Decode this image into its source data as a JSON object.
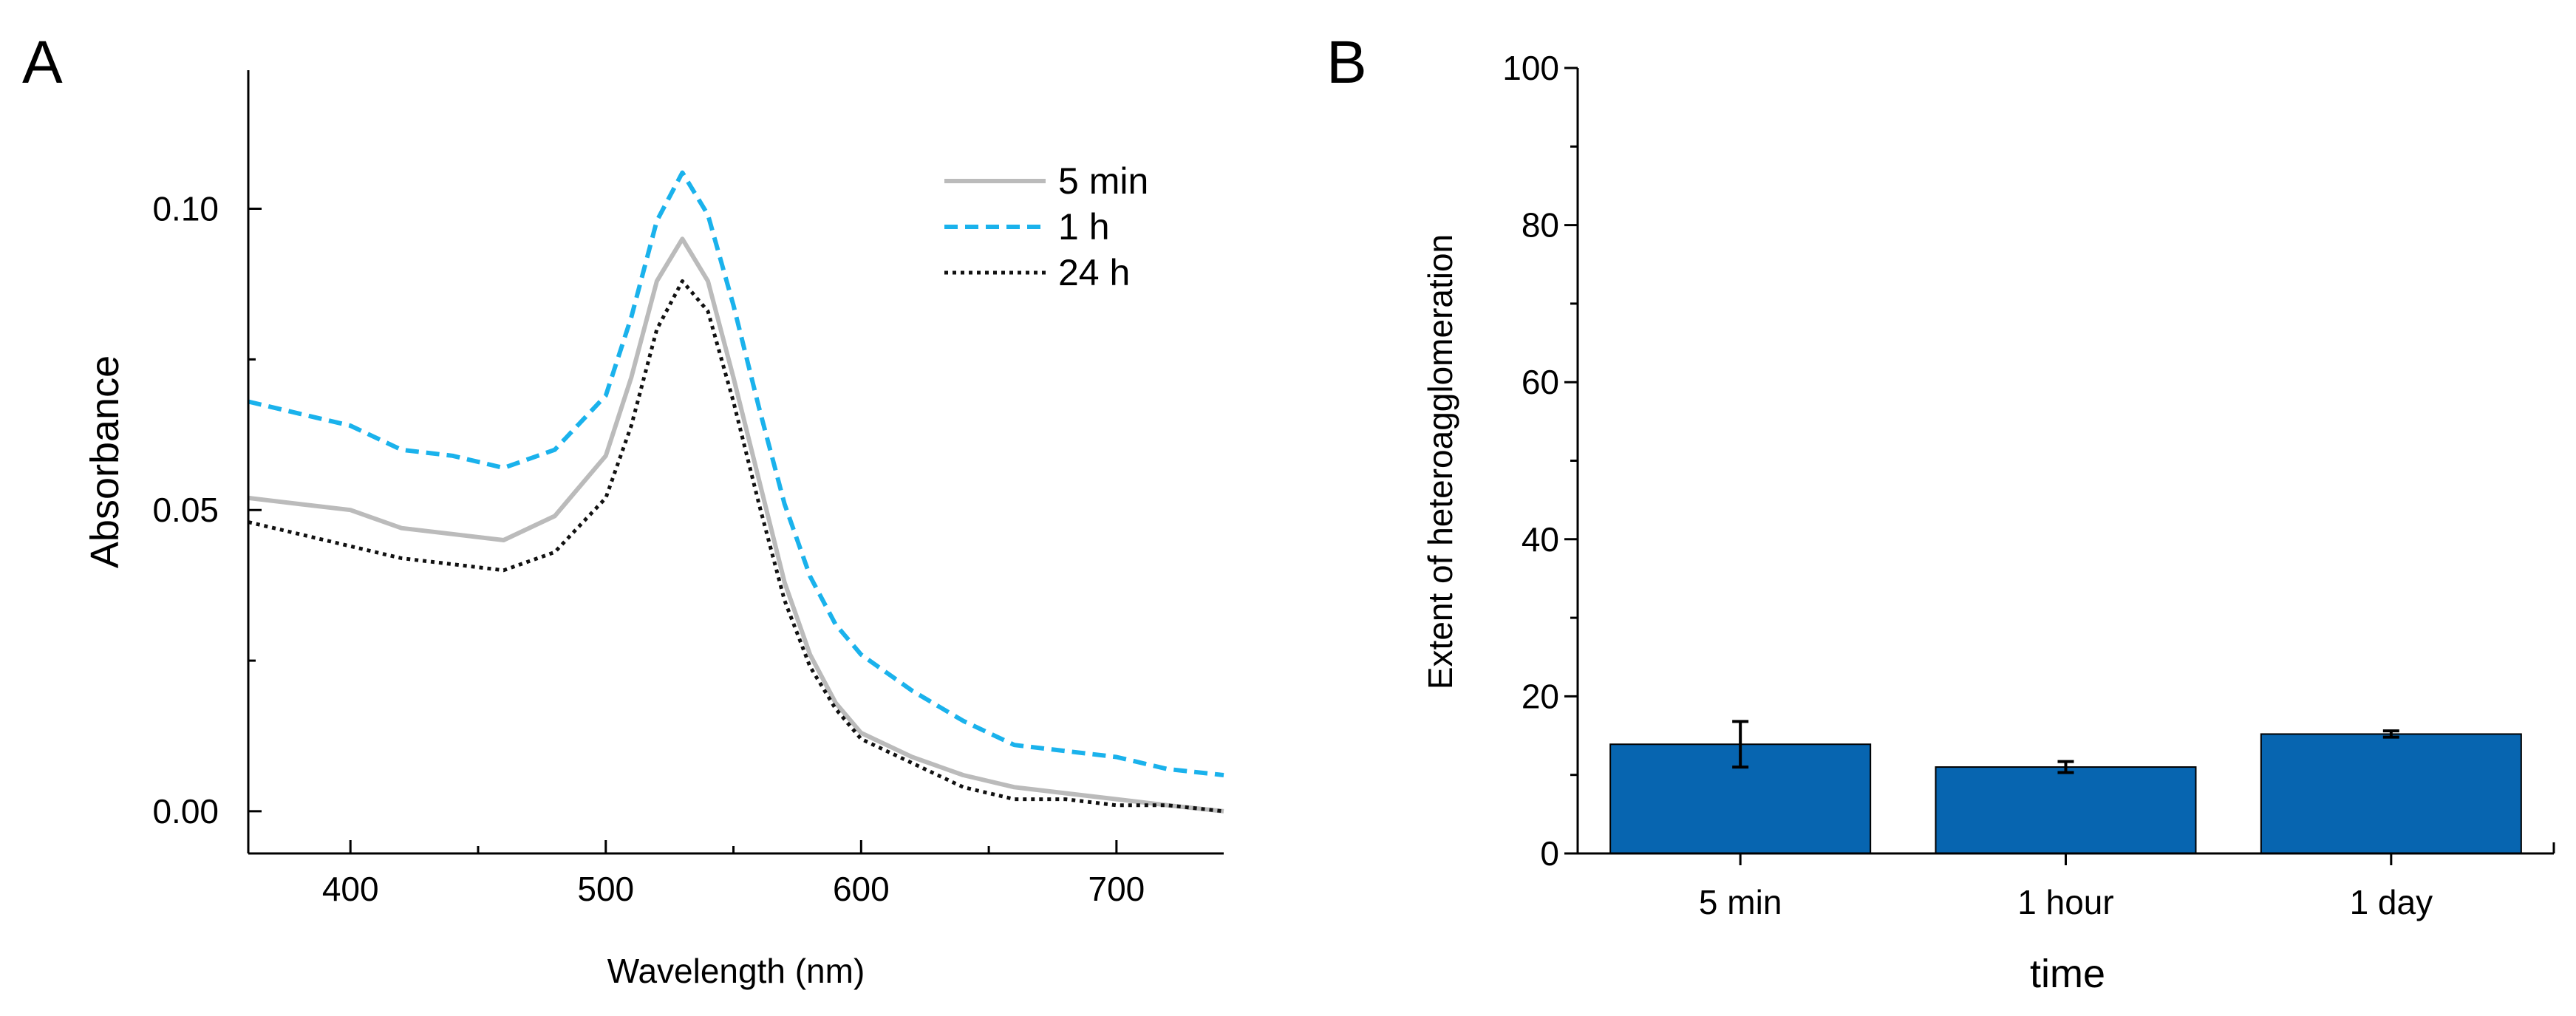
{
  "chart_data": [
    {
      "panel_label": "A",
      "type": "line",
      "title": "",
      "xlabel": "Wavelength (nm)",
      "ylabel": "Absorbance",
      "xlim": [
        360,
        742
      ],
      "ylim": [
        -0.007,
        0.123
      ],
      "xticks": [
        400,
        500,
        600,
        700
      ],
      "xtick_labels": [
        "400",
        "500",
        "600",
        "700"
      ],
      "yticks": [
        0.0,
        0.05,
        0.1
      ],
      "ytick_labels": [
        "0.00",
        "0.05",
        "0.10"
      ],
      "grid": false,
      "legend_position": "top-right",
      "series": [
        {
          "name": "5 min",
          "color": "#bbbbbb",
          "style": "solid",
          "x": [
            360,
            380,
            400,
            420,
            440,
            460,
            480,
            500,
            510,
            520,
            530,
            540,
            550,
            560,
            570,
            580,
            590,
            600,
            620,
            640,
            660,
            680,
            700,
            720,
            742
          ],
          "y": [
            0.052,
            0.051,
            0.05,
            0.047,
            0.046,
            0.045,
            0.049,
            0.059,
            0.072,
            0.088,
            0.095,
            0.088,
            0.072,
            0.055,
            0.038,
            0.026,
            0.018,
            0.013,
            0.009,
            0.006,
            0.004,
            0.003,
            0.002,
            0.001,
            0.0
          ]
        },
        {
          "name": "1 h",
          "color": "#1ab2ec",
          "style": "dashed",
          "x": [
            360,
            380,
            400,
            420,
            440,
            460,
            480,
            500,
            510,
            520,
            530,
            540,
            550,
            560,
            570,
            580,
            590,
            600,
            620,
            640,
            660,
            680,
            700,
            720,
            742
          ],
          "y": [
            0.068,
            0.066,
            0.064,
            0.06,
            0.059,
            0.057,
            0.06,
            0.069,
            0.082,
            0.098,
            0.106,
            0.099,
            0.084,
            0.067,
            0.051,
            0.039,
            0.031,
            0.026,
            0.02,
            0.015,
            0.011,
            0.01,
            0.009,
            0.007,
            0.006
          ]
        },
        {
          "name": "24 h",
          "color": "#111111",
          "style": "dotted",
          "x": [
            360,
            380,
            400,
            420,
            440,
            460,
            480,
            500,
            510,
            520,
            530,
            540,
            550,
            560,
            570,
            580,
            590,
            600,
            620,
            640,
            660,
            680,
            700,
            720,
            742
          ],
          "y": [
            0.048,
            0.046,
            0.044,
            0.042,
            0.041,
            0.04,
            0.043,
            0.052,
            0.064,
            0.08,
            0.088,
            0.083,
            0.068,
            0.051,
            0.035,
            0.024,
            0.017,
            0.012,
            0.008,
            0.004,
            0.002,
            0.002,
            0.001,
            0.001,
            0.0
          ]
        }
      ]
    },
    {
      "panel_label": "B",
      "type": "bar",
      "title": "",
      "xlabel": "time",
      "ylabel": "Extent of heteroagglomeration",
      "ylim": [
        0,
        100
      ],
      "yticks": [
        0,
        20,
        40,
        60,
        80,
        100
      ],
      "ytick_labels": [
        "0",
        "20",
        "40",
        "60",
        "80",
        "100"
      ],
      "grid": false,
      "bar_color": "#0765b0",
      "categories": [
        "5 min",
        "1 hour",
        "1 day"
      ],
      "values": [
        13.9,
        11.0,
        15.2
      ],
      "errors": [
        2.9,
        0.7,
        0.4
      ]
    }
  ]
}
